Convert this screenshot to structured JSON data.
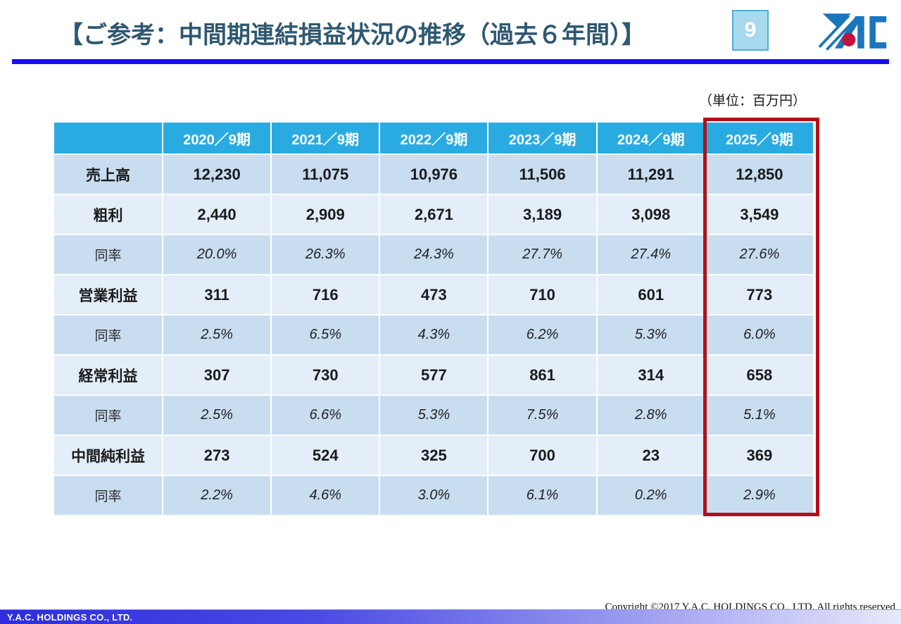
{
  "slide": {
    "title": "【ご参考：中間期連結損益状況の推移（過去６年間）】",
    "page_number": "9",
    "unit_label": "（単位：百万円）"
  },
  "table": {
    "corner_label": "",
    "columns": [
      "2020／9期",
      "2021／9期",
      "2022／9期",
      "2023／9期",
      "2024／9期",
      "2025／9期"
    ],
    "highlighted_column": "2025／9期",
    "rows": [
      {
        "label": "売上高",
        "style": "metric",
        "values": [
          "12,230",
          "11,075",
          "10,976",
          "11,506",
          "11,291",
          "12,850"
        ]
      },
      {
        "label": "粗利",
        "style": "metric",
        "values": [
          "2,440",
          "2,909",
          "2,671",
          "3,189",
          "3,098",
          "3,549"
        ]
      },
      {
        "label": "同率",
        "style": "ratio",
        "values": [
          "20.0%",
          "26.3%",
          "24.3%",
          "27.7%",
          "27.4%",
          "27.6%"
        ]
      },
      {
        "label": "営業利益",
        "style": "metric",
        "values": [
          "311",
          "716",
          "473",
          "710",
          "601",
          "773"
        ]
      },
      {
        "label": "同率",
        "style": "ratio",
        "values": [
          "2.5%",
          "6.5%",
          "4.3%",
          "6.2%",
          "5.3%",
          "6.0%"
        ]
      },
      {
        "label": "経常利益",
        "style": "metric",
        "values": [
          "307",
          "730",
          "577",
          "861",
          "314",
          "658"
        ]
      },
      {
        "label": "同率",
        "style": "ratio",
        "values": [
          "2.5%",
          "6.6%",
          "5.3%",
          "7.5%",
          "2.8%",
          "5.1%"
        ]
      },
      {
        "label": "中間純利益",
        "style": "metric",
        "values": [
          "273",
          "524",
          "325",
          "700",
          "23",
          "369"
        ]
      },
      {
        "label": "同率",
        "style": "ratio",
        "values": [
          "2.2%",
          "4.6%",
          "3.0%",
          "6.1%",
          "0.2%",
          "2.9%"
        ]
      }
    ]
  },
  "footer": {
    "company": "Y.A.C. HOLDINGS CO., LTD.",
    "copyright": "Copyright ©2017 Y.A.C. HOLDINGS CO., LTD.  All rights reserved"
  },
  "colors": {
    "header_cyan": "#29abe2",
    "band_medium": "#c9ddf1",
    "band_light": "#e4eef9",
    "title_text": "#2e5871",
    "rule_blue": "#1a0ef0",
    "highlight_red": "#b41016",
    "logo_blue": "#1b75bc",
    "logo_red": "#c0143c"
  }
}
